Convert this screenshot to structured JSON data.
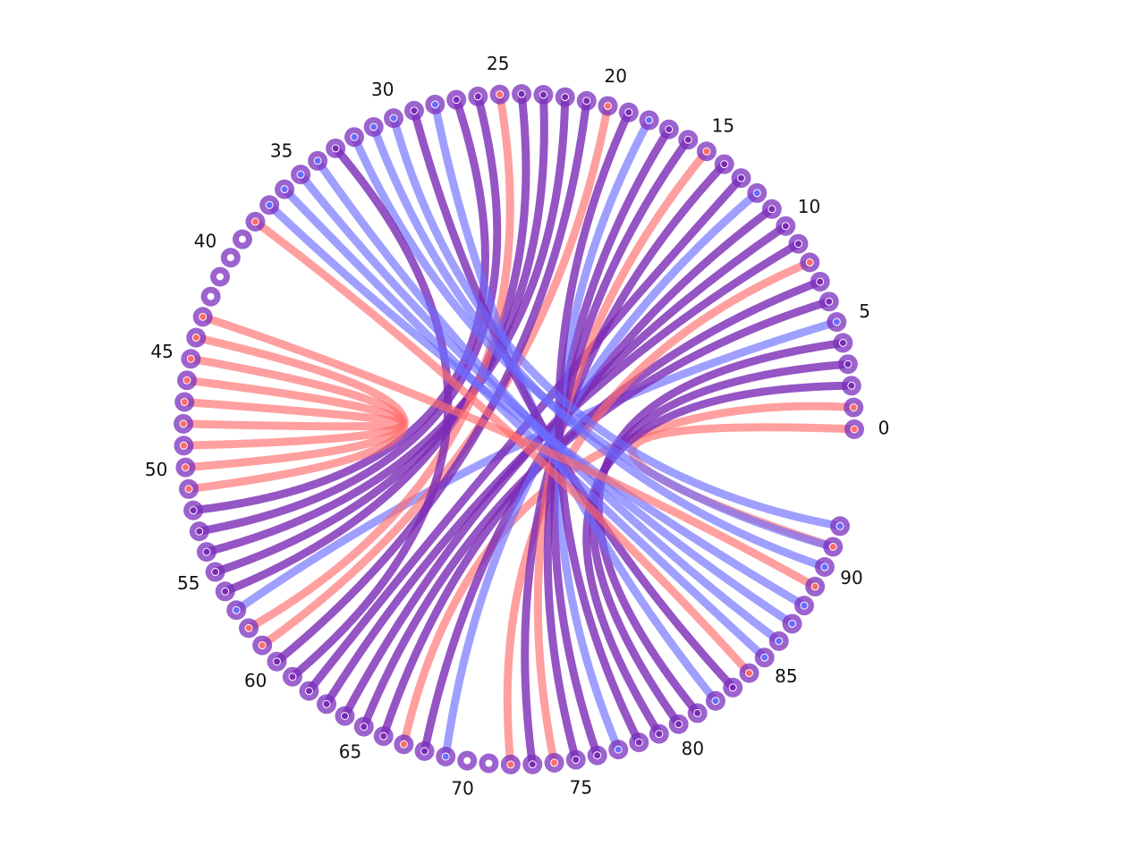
{
  "diagram": {
    "type": "arc-diagram",
    "node_count": 93,
    "tick_labels": [
      "0",
      "5",
      "10",
      "15",
      "20",
      "25",
      "30",
      "35",
      "40",
      "45",
      "50",
      "55",
      "60",
      "65",
      "70",
      "75",
      "80",
      "85",
      "90"
    ],
    "tick_step": 5,
    "colors": {
      "node": "#7B2FBE",
      "red": "#FF6B6B",
      "blue": "#6B6BFF",
      "purple": "#7A2AB5",
      "node_center": "#ffffff"
    },
    "links": [
      {
        "a": 0,
        "b": 91,
        "c": "red"
      },
      {
        "a": 1,
        "b": 67,
        "c": "red"
      },
      {
        "a": 2,
        "b": 79,
        "c": "purple"
      },
      {
        "a": 3,
        "b": 80,
        "c": "purple"
      },
      {
        "a": 4,
        "b": 81,
        "c": "purple"
      },
      {
        "a": 5,
        "b": 57,
        "c": "blue"
      },
      {
        "a": 6,
        "b": 65,
        "c": "purple"
      },
      {
        "a": 7,
        "b": 66,
        "c": "purple"
      },
      {
        "a": 8,
        "b": 72,
        "c": "red"
      },
      {
        "a": 9,
        "b": 63,
        "c": "purple"
      },
      {
        "a": 10,
        "b": 64,
        "c": "purple"
      },
      {
        "a": 11,
        "b": 68,
        "c": "purple"
      },
      {
        "a": 12,
        "b": 69,
        "c": "blue"
      },
      {
        "a": 13,
        "b": 62,
        "c": "purple"
      },
      {
        "a": 14,
        "b": 73,
        "c": "purple"
      },
      {
        "a": 15,
        "b": 74,
        "c": "red"
      },
      {
        "a": 16,
        "b": 75,
        "c": "purple"
      },
      {
        "a": 17,
        "b": 76,
        "c": "purple"
      },
      {
        "a": 18,
        "b": 77,
        "c": "blue"
      },
      {
        "a": 19,
        "b": 78,
        "c": "purple"
      },
      {
        "a": 20,
        "b": 59,
        "c": "red"
      },
      {
        "a": 21,
        "b": 60,
        "c": "purple"
      },
      {
        "a": 22,
        "b": 54,
        "c": "purple"
      },
      {
        "a": 23,
        "b": 55,
        "c": "purple"
      },
      {
        "a": 24,
        "b": 56,
        "c": "purple"
      },
      {
        "a": 25,
        "b": 58,
        "c": "red"
      },
      {
        "a": 26,
        "b": 53,
        "c": "purple"
      },
      {
        "a": 27,
        "b": 52,
        "c": "purple"
      },
      {
        "a": 28,
        "b": 82,
        "c": "blue"
      },
      {
        "a": 29,
        "b": 83,
        "c": "purple"
      },
      {
        "a": 30,
        "b": 92,
        "c": "blue"
      },
      {
        "a": 31,
        "b": 90,
        "c": "blue"
      },
      {
        "a": 32,
        "b": 91,
        "c": "blue"
      },
      {
        "a": 33,
        "b": 61,
        "c": "purple"
      },
      {
        "a": 34,
        "b": 86,
        "c": "blue"
      },
      {
        "a": 35,
        "b": 87,
        "c": "blue"
      },
      {
        "a": 36,
        "b": 85,
        "c": "blue"
      },
      {
        "a": 37,
        "b": 88,
        "c": "blue"
      },
      {
        "a": 38,
        "b": 84,
        "c": "red"
      },
      {
        "a": 45,
        "b": 50,
        "c": "red"
      },
      {
        "a": 46,
        "b": 49,
        "c": "red"
      },
      {
        "a": 47,
        "b": 48,
        "c": "red"
      },
      {
        "a": 44,
        "b": 51,
        "c": "red"
      },
      {
        "a": 43,
        "b": 89,
        "c": "red"
      }
    ],
    "node_fill": {
      "0": "red",
      "1": "red",
      "2": "purple",
      "3": "purple",
      "4": "purple",
      "5": "blue",
      "6": "purple",
      "7": "purple",
      "8": "red",
      "9": "purple",
      "10": "purple",
      "11": "purple",
      "12": "blue",
      "13": "purple",
      "14": "purple",
      "15": "red",
      "16": "purple",
      "17": "purple",
      "18": "blue",
      "19": "purple",
      "20": "red",
      "21": "purple",
      "22": "purple",
      "23": "purple",
      "24": "purple",
      "25": "red",
      "26": "purple",
      "27": "purple",
      "28": "blue",
      "29": "purple",
      "30": "blue",
      "31": "blue",
      "32": "blue",
      "33": "purple",
      "34": "blue",
      "35": "blue",
      "36": "blue",
      "37": "blue",
      "38": "red",
      "43": "red",
      "44": "red",
      "45": "red",
      "46": "red",
      "47": "red",
      "48": "red",
      "49": "red",
      "50": "red",
      "51": "red",
      "52": "purple",
      "53": "purple",
      "54": "purple",
      "55": "purple",
      "56": "purple",
      "57": "blue",
      "58": "red",
      "59": "red",
      "60": "purple",
      "61": "purple",
      "62": "purple",
      "63": "purple",
      "64": "purple",
      "65": "purple",
      "66": "purple",
      "67": "red",
      "68": "purple",
      "69": "blue",
      "72": "red",
      "73": "purple",
      "74": "red",
      "75": "purple",
      "76": "purple",
      "77": "blue",
      "78": "purple",
      "79": "purple",
      "80": "purple",
      "81": "purple",
      "82": "blue",
      "83": "purple",
      "84": "red",
      "85": "blue",
      "86": "blue",
      "87": "blue",
      "88": "blue",
      "89": "red",
      "90": "blue",
      "91": "red",
      "92": "blue"
    }
  }
}
